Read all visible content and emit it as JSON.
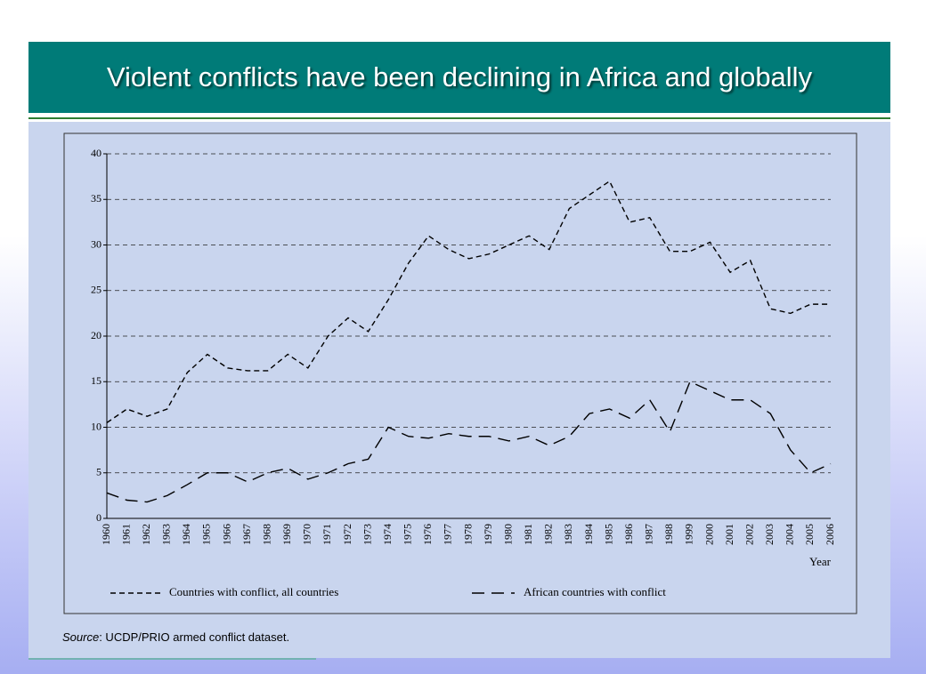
{
  "slide_title": "Violent conflicts have been declining in Africa and globally",
  "source_label": "Source",
  "source_text": ": UCDP/PRIO armed conflict dataset.",
  "chart_data": {
    "type": "line",
    "xlabel": "Year",
    "categories": [
      "1960",
      "1961",
      "1962",
      "1963",
      "1964",
      "1965",
      "1966",
      "1967",
      "1968",
      "1969",
      "1970",
      "1971",
      "1972",
      "1973",
      "1974",
      "1975",
      "1976",
      "1977",
      "1978",
      "1979",
      "1980",
      "1981",
      "1982",
      "1983",
      "1984",
      "1985",
      "1986",
      "1987",
      "1988",
      "1999",
      "2000",
      "2001",
      "2002",
      "2003",
      "2004",
      "2005",
      "2006"
    ],
    "series": [
      {
        "name": "Countries with conflict, all countries",
        "color": "#000000",
        "line_style": "dashed",
        "values": [
          10.5,
          12,
          11.2,
          12,
          16,
          18,
          16.5,
          16.2,
          16.2,
          18,
          16.5,
          20,
          22,
          20.5,
          24,
          28,
          31,
          29.5,
          28.5,
          29,
          30,
          31,
          29.5,
          34,
          35.5,
          37,
          32.5,
          33,
          29.3,
          29.3,
          30.3,
          27,
          28.3,
          23,
          22.5,
          23.5,
          23.5
        ]
      },
      {
        "name": "African countries with conflict",
        "color": "#000000",
        "line_style": "long-dashed",
        "values": [
          2.8,
          2,
          1.8,
          2.5,
          3.7,
          5,
          5,
          4,
          5,
          5.5,
          4.3,
          5,
          6,
          6.5,
          10,
          9,
          8.8,
          9.3,
          9,
          9,
          8.5,
          9,
          8,
          9,
          11.5,
          12,
          11,
          13,
          9.5,
          15,
          14,
          13,
          13,
          11.5,
          7.5,
          5,
          6
        ]
      }
    ],
    "ylim": [
      0,
      40
    ],
    "yticks": [
      0,
      5,
      10,
      15,
      20,
      25,
      30,
      35,
      40
    ],
    "grid": true,
    "legend": "bottom"
  }
}
